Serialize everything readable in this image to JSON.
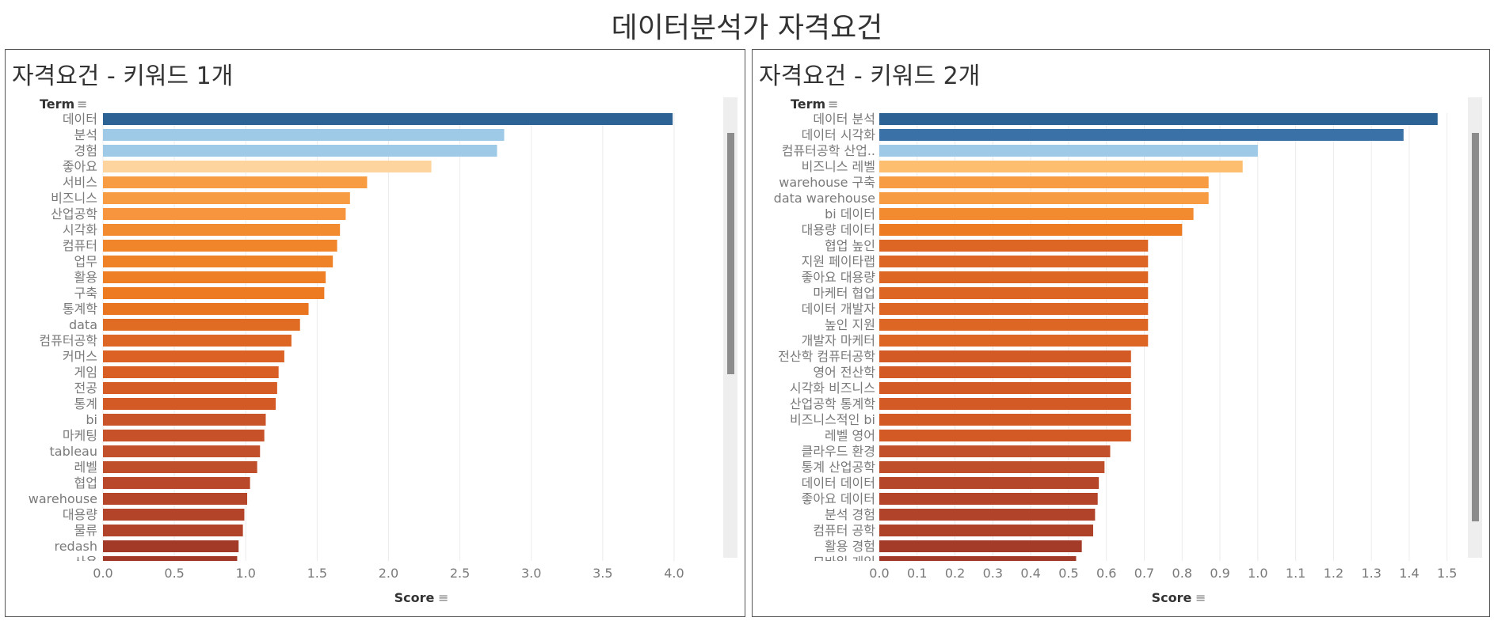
{
  "dashboard_title": "데이터분석가 자격요건",
  "chart_data": [
    {
      "type": "bar",
      "orientation": "horizontal",
      "title": "자격요건 - 키워드 1개",
      "ylabel": "Term",
      "xlabel": "Score",
      "xlim": [
        0,
        4.2
      ],
      "xticks": [
        "0.0",
        "0.5",
        "1.0",
        "1.5",
        "2.0",
        "2.5",
        "3.0",
        "3.5",
        "4.0"
      ],
      "grid": "vertical",
      "categories": [
        "데이터",
        "분석",
        "경험",
        "좋아요",
        "서비스",
        "비즈니스",
        "산업공학",
        "시각화",
        "컴퓨터",
        "업무",
        "활용",
        "구축",
        "통계학",
        "data",
        "컴퓨터공학",
        "커머스",
        "게임",
        "전공",
        "통계",
        "bi",
        "마케팅",
        "tableau",
        "레벨",
        "협업",
        "warehouse",
        "대용량",
        "물류",
        "redash",
        "사용"
      ],
      "values": [
        3.99,
        2.81,
        2.76,
        2.3,
        1.85,
        1.73,
        1.7,
        1.66,
        1.64,
        1.61,
        1.56,
        1.55,
        1.44,
        1.38,
        1.32,
        1.27,
        1.23,
        1.22,
        1.21,
        1.14,
        1.13,
        1.1,
        1.08,
        1.03,
        1.01,
        0.99,
        0.98,
        0.95,
        0.94
      ],
      "colors": [
        "#2c6394",
        "#9ecae8",
        "#9ecae8",
        "#fdd49e",
        "#f89c44",
        "#f89c44",
        "#f7943e",
        "#f28a30",
        "#f08629",
        "#ef8126",
        "#ee7f24",
        "#ec7b22",
        "#e97520",
        "#e06b22",
        "#dd6624",
        "#db6224",
        "#d85e24",
        "#d65c25",
        "#d45a25",
        "#c9542a",
        "#c7522a",
        "#c2502a",
        "#bf4e2a",
        "#b9482a",
        "#b6462a",
        "#b34429",
        "#b04329",
        "#a33a28",
        "#a13928"
      ],
      "scrollbar": "vertical"
    },
    {
      "type": "bar",
      "orientation": "horizontal",
      "title": "자격요건 - 키워드 2개",
      "ylabel": "Term",
      "xlabel": "Score",
      "xlim": [
        0,
        1.58
      ],
      "xticks": [
        "0.0",
        "0.1",
        "0.2",
        "0.3",
        "0.4",
        "0.5",
        "0.6",
        "0.7",
        "0.8",
        "0.9",
        "1.0",
        "1.1",
        "1.2",
        "1.3",
        "1.4",
        "1.5"
      ],
      "grid": "vertical",
      "categories": [
        "데이터 분석",
        "데이터 시각화",
        "컴퓨터공학 산업..",
        "비즈니스 레벨",
        "warehouse 구축",
        "data warehouse",
        "bi 데이터",
        "대용량 데이터",
        "협업 높인",
        "지원 페이타랩",
        "좋아요 대용량",
        "마케터 협업",
        "데이터 개발자",
        "높인 지원",
        "개발자 마케터",
        "전산학 컴퓨터공학",
        "영어 전산학",
        "시각화 비즈니스",
        "산업공학 통계학",
        "비즈니스적인 bi",
        "레벨 영어",
        "클라우드 환경",
        "통계 산업공학",
        "데이터 데이터",
        "좋아요 데이터",
        "분석 경험",
        "컴퓨터 공학",
        "활용 경험",
        "모바일 게임"
      ],
      "values": [
        1.475,
        1.385,
        1.0,
        0.96,
        0.87,
        0.87,
        0.83,
        0.8,
        0.71,
        0.71,
        0.71,
        0.71,
        0.71,
        0.71,
        0.71,
        0.665,
        0.665,
        0.665,
        0.665,
        0.665,
        0.665,
        0.61,
        0.595,
        0.58,
        0.577,
        0.57,
        0.565,
        0.535,
        0.52
      ],
      "colors": [
        "#2c6394",
        "#3a72a7",
        "#9ecae8",
        "#fdbf6f",
        "#f89c44",
        "#f89c44",
        "#f28a30",
        "#ec7b22",
        "#dd6624",
        "#dd6624",
        "#dd6624",
        "#dd6624",
        "#dd6624",
        "#dd6624",
        "#dd6624",
        "#d45a25",
        "#d45a25",
        "#d45a25",
        "#d45a25",
        "#d45a25",
        "#d45a25",
        "#c2502a",
        "#bf4e2a",
        "#b6462a",
        "#b4452a",
        "#b04329",
        "#ae4229",
        "#a43b28",
        "#a13928"
      ],
      "scrollbar": "vertical"
    }
  ]
}
